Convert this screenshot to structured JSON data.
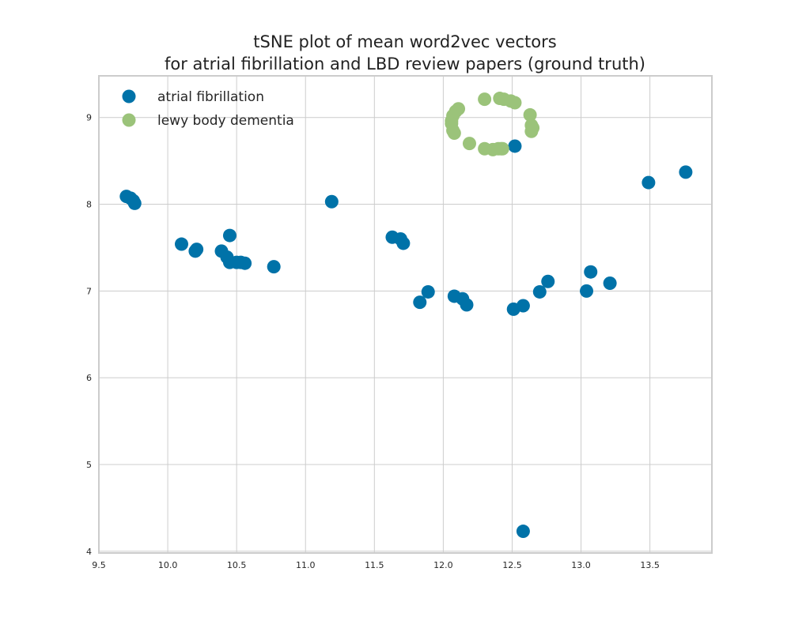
{
  "chart_data": {
    "type": "scatter",
    "title_lines": [
      "tSNE plot of mean word2vec vectors",
      "for atrial fibrillation and LBD review papers (ground truth)"
    ],
    "xlabel": "",
    "ylabel": "",
    "xlim": [
      9.5,
      13.95
    ],
    "ylim": [
      3.98,
      9.48
    ],
    "x_ticks": [
      9.5,
      10.0,
      10.5,
      11.0,
      11.5,
      12.0,
      12.5,
      13.0,
      13.5
    ],
    "x_tick_labels": [
      "9.5",
      "10.0",
      "10.5",
      "11.0",
      "11.5",
      "12.0",
      "12.5",
      "13.0",
      "13.5"
    ],
    "y_ticks": [
      4,
      5,
      6,
      7,
      8,
      9
    ],
    "y_tick_labels": [
      "4",
      "5",
      "6",
      "7",
      "8",
      "9"
    ],
    "grid": true,
    "legend_position": "top-left",
    "series": [
      {
        "name": "atrial fibrillation",
        "color": "#0072a8",
        "points": [
          [
            9.7,
            8.09
          ],
          [
            9.73,
            8.07
          ],
          [
            9.75,
            8.04
          ],
          [
            9.76,
            8.01
          ],
          [
            10.1,
            7.54
          ],
          [
            10.2,
            7.46
          ],
          [
            10.21,
            7.48
          ],
          [
            10.39,
            7.46
          ],
          [
            10.45,
            7.64
          ],
          [
            10.43,
            7.39
          ],
          [
            10.45,
            7.33
          ],
          [
            10.5,
            7.33
          ],
          [
            10.53,
            7.33
          ],
          [
            10.56,
            7.32
          ],
          [
            10.77,
            7.28
          ],
          [
            11.19,
            8.03
          ],
          [
            11.63,
            7.62
          ],
          [
            11.69,
            7.6
          ],
          [
            11.71,
            7.55
          ],
          [
            11.83,
            6.87
          ],
          [
            11.89,
            6.99
          ],
          [
            12.08,
            6.94
          ],
          [
            12.14,
            6.91
          ],
          [
            12.17,
            6.84
          ],
          [
            12.51,
            6.79
          ],
          [
            12.58,
            6.83
          ],
          [
            12.7,
            6.99
          ],
          [
            12.76,
            7.11
          ],
          [
            12.52,
            8.67
          ],
          [
            13.04,
            7.0
          ],
          [
            13.07,
            7.22
          ],
          [
            13.21,
            7.09
          ],
          [
            13.49,
            8.25
          ],
          [
            13.76,
            8.37
          ],
          [
            12.58,
            4.23
          ]
        ]
      },
      {
        "name": "lewy body dementia",
        "color": "#9bc37a",
        "points": [
          [
            12.3,
            9.21
          ],
          [
            12.41,
            9.22
          ],
          [
            12.44,
            9.21
          ],
          [
            12.49,
            9.19
          ],
          [
            12.52,
            9.17
          ],
          [
            12.11,
            9.1
          ],
          [
            12.09,
            9.07
          ],
          [
            12.07,
            9.02
          ],
          [
            12.06,
            8.96
          ],
          [
            12.06,
            8.93
          ],
          [
            12.07,
            8.85
          ],
          [
            12.08,
            8.82
          ],
          [
            12.63,
            9.03
          ],
          [
            12.64,
            8.91
          ],
          [
            12.65,
            8.88
          ],
          [
            12.64,
            8.84
          ],
          [
            12.19,
            8.7
          ],
          [
            12.3,
            8.64
          ],
          [
            12.36,
            8.63
          ],
          [
            12.4,
            8.64
          ],
          [
            12.42,
            8.64
          ],
          [
            12.43,
            8.64
          ]
        ]
      }
    ]
  }
}
